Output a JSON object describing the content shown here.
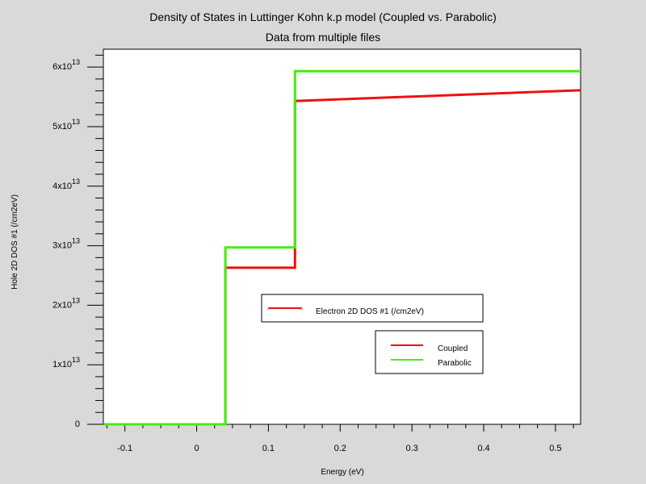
{
  "chart_data": {
    "type": "line",
    "title": "Density of States in Luttinger Kohn k.p model (Coupled vs. Parabolic)",
    "subtitle": "Data from multiple files",
    "xlabel": "Energy (eV)",
    "ylabel": "Hole 2D DOS #1 (/cm2eV)",
    "xlim": [
      -0.13,
      0.535
    ],
    "ylim": [
      0,
      63000000000000.0
    ],
    "x_ticks": [
      {
        "value": -0.1,
        "label": "-0.1"
      },
      {
        "value": 0,
        "label": "0"
      },
      {
        "value": 0.1,
        "label": "0.1"
      },
      {
        "value": 0.2,
        "label": "0.2"
      },
      {
        "value": 0.3,
        "label": "0.3"
      },
      {
        "value": 0.4,
        "label": "0.4"
      },
      {
        "value": 0.5,
        "label": "0.5"
      }
    ],
    "y_ticks": [
      {
        "value": 0,
        "label": "0",
        "exp": ""
      },
      {
        "value": 10000000000000.0,
        "label": "1x10",
        "exp": "13"
      },
      {
        "value": 20000000000000.0,
        "label": "2x10",
        "exp": "13"
      },
      {
        "value": 30000000000000.0,
        "label": "3x10",
        "exp": "13"
      },
      {
        "value": 40000000000000.0,
        "label": "4x10",
        "exp": "13"
      },
      {
        "value": 50000000000000.0,
        "label": "5x10",
        "exp": "13"
      },
      {
        "value": 60000000000000.0,
        "label": "6x10",
        "exp": "13"
      }
    ],
    "series": [
      {
        "name": "Coupled",
        "color": "#ee1111",
        "x": [
          -0.13,
          0.04,
          0.04,
          0.137,
          0.137,
          0.535
        ],
        "y": [
          0,
          0,
          26300000000000.0,
          26300000000000.0,
          54300000000000.0,
          56100000000000.0
        ]
      },
      {
        "name": "Parabolic",
        "color": "#44ee11",
        "x": [
          -0.13,
          0.04,
          0.04,
          0.137,
          0.137,
          0.535
        ],
        "y": [
          0,
          0,
          29700000000000.0,
          29700000000000.0,
          59300000000000.0,
          59300000000000.0
        ]
      }
    ],
    "legend_header": {
      "label": "Electron 2D DOS #1 (/cm2eV)",
      "color": "#ee1111"
    },
    "legend_placement": "bottom-right, inside plot",
    "grid": false
  }
}
